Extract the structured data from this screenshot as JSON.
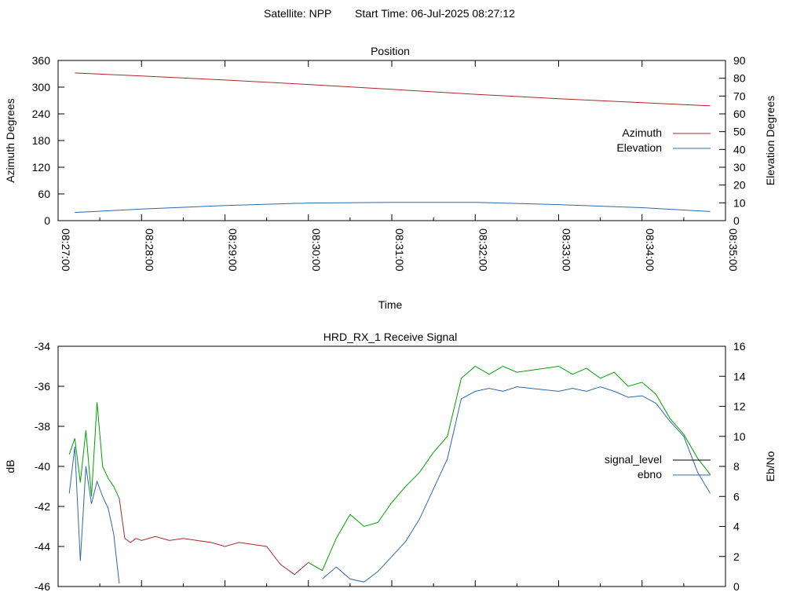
{
  "header": {
    "satellite": "Satellite: NPP",
    "start_time": "Start Time: 06-Jul-2025 08:27:12"
  },
  "colors": {
    "azimuth": "#a52a2a",
    "elevation": "#2f68a6",
    "signal_level_high": "#00a000",
    "signal_level_low": "#a52a2a",
    "ebno": "#2f68a6",
    "legend_signal": "#000000"
  },
  "chart_data": [
    {
      "type": "line",
      "title": "Position",
      "xlabel": "Time",
      "ylabel": "Azimuth Degrees",
      "y2label": "Elevation Degrees",
      "xlim": [
        "08:27:00",
        "08:35:00"
      ],
      "x_ticks": [
        "08:27:00",
        "08:28:00",
        "08:29:00",
        "08:30:00",
        "08:31:00",
        "08:32:00",
        "08:33:00",
        "08:34:00",
        "08:35:00"
      ],
      "ylim": [
        0,
        360
      ],
      "y_ticks": [
        "0",
        "60",
        "120",
        "180",
        "240",
        "300",
        "360"
      ],
      "y2lim": [
        0,
        90
      ],
      "y2_ticks": [
        "0",
        "10",
        "20",
        "30",
        "40",
        "50",
        "60",
        "70",
        "80",
        "90"
      ],
      "legend_position": "right",
      "grid": false,
      "series": [
        {
          "name": "Azimuth",
          "axis": "y1",
          "x": [
            "08:27:12",
            "08:28:00",
            "08:29:00",
            "08:30:00",
            "08:31:00",
            "08:32:00",
            "08:33:00",
            "08:34:00",
            "08:34:49"
          ],
          "values": [
            332,
            325,
            316,
            306,
            295,
            284,
            274,
            265,
            258
          ]
        },
        {
          "name": "Elevation",
          "axis": "y2",
          "x": [
            "08:27:12",
            "08:28:00",
            "08:29:00",
            "08:30:00",
            "08:31:00",
            "08:32:00",
            "08:33:00",
            "08:34:00",
            "08:34:49"
          ],
          "values": [
            4.6,
            6.5,
            8.5,
            9.9,
            10.3,
            10.3,
            9.0,
            7.3,
            5.1
          ]
        }
      ]
    },
    {
      "type": "line",
      "title": "HRD_RX_1 Receive Signal",
      "ylabel": "dB",
      "y2label": "Eb/No",
      "xlim": [
        "08:27:00",
        "08:35:00"
      ],
      "ylim": [
        -46,
        -34
      ],
      "y_ticks": [
        "-34",
        "-36",
        "-38",
        "-40",
        "-42",
        "-44",
        "-46"
      ],
      "y2lim": [
        0,
        16
      ],
      "y2_ticks": [
        "0",
        "2",
        "4",
        "6",
        "8",
        "10",
        "12",
        "14",
        "16"
      ],
      "legend_position": "right",
      "grid": false,
      "series": [
        {
          "name": "signal_level",
          "axis": "y1",
          "x": [
            "08:27:08",
            "08:27:12",
            "08:27:16",
            "08:27:20",
            "08:27:24",
            "08:27:28",
            "08:27:32",
            "08:27:36",
            "08:27:40",
            "08:27:44",
            "08:27:48",
            "08:27:52",
            "08:27:56",
            "08:28:00",
            "08:28:10",
            "08:28:20",
            "08:28:30",
            "08:28:40",
            "08:28:50",
            "08:29:00",
            "08:29:10",
            "08:29:20",
            "08:29:30",
            "08:29:40",
            "08:29:50",
            "08:30:00",
            "08:30:10",
            "08:30:20",
            "08:30:30",
            "08:30:40",
            "08:30:50",
            "08:31:00",
            "08:31:10",
            "08:31:20",
            "08:31:30",
            "08:31:40",
            "08:31:50",
            "08:32:00",
            "08:32:10",
            "08:32:20",
            "08:32:30",
            "08:32:40",
            "08:32:50",
            "08:33:00",
            "08:33:10",
            "08:33:20",
            "08:33:30",
            "08:33:40",
            "08:33:50",
            "08:34:00",
            "08:34:10",
            "08:34:20",
            "08:34:30",
            "08:34:40",
            "08:34:49"
          ],
          "values": [
            -39.4,
            -38.6,
            -40.8,
            -38.2,
            -41.5,
            -36.8,
            -40.0,
            -40.6,
            -41.0,
            -41.6,
            -43.6,
            -43.8,
            -43.6,
            -43.7,
            -43.5,
            -43.7,
            -43.6,
            -43.7,
            -43.8,
            -44.0,
            -43.8,
            -43.9,
            -44.0,
            -44.9,
            -45.4,
            -44.8,
            -45.2,
            -43.6,
            -42.4,
            -43.0,
            -42.8,
            -41.8,
            -41.0,
            -40.3,
            -39.3,
            -38.5,
            -35.6,
            -35.0,
            -35.4,
            -35.0,
            -35.3,
            -35.2,
            -35.1,
            -35.0,
            -35.4,
            -35.1,
            -35.6,
            -35.3,
            -36.0,
            -35.8,
            -36.4,
            -37.6,
            -38.4,
            -39.6,
            -40.4
          ]
        },
        {
          "name": "ebno",
          "axis": "y2",
          "x": [
            "08:27:08",
            "08:27:12",
            "08:27:16",
            "08:27:20",
            "08:27:24",
            "08:27:28",
            "08:27:32",
            "08:27:36",
            "08:27:40",
            "08:27:44",
            "08:27:48",
            "08:27:52",
            "08:27:56",
            "08:28:00",
            "08:28:10",
            "08:28:20",
            "08:28:30",
            "08:28:40",
            "08:28:50",
            "08:29:00",
            "08:29:10",
            "08:29:20",
            "08:29:30",
            "08:29:40",
            "08:29:50",
            "08:30:00",
            "08:30:10",
            "08:30:20",
            "08:30:30",
            "08:30:40",
            "08:30:50",
            "08:31:00",
            "08:31:10",
            "08:31:20",
            "08:31:30",
            "08:31:40",
            "08:31:50",
            "08:32:00",
            "08:32:10",
            "08:32:20",
            "08:32:30",
            "08:32:40",
            "08:32:50",
            "08:33:00",
            "08:33:10",
            "08:33:20",
            "08:33:30",
            "08:33:40",
            "08:33:50",
            "08:34:00",
            "08:34:10",
            "08:34:20",
            "08:34:30",
            "08:34:40",
            "08:34:49"
          ],
          "values": [
            6.2,
            9.3,
            1.7,
            8.0,
            5.5,
            7.0,
            6.0,
            5.2,
            3.5,
            0.2,
            null,
            null,
            null,
            null,
            null,
            null,
            null,
            null,
            null,
            null,
            null,
            null,
            null,
            null,
            null,
            null,
            0.5,
            1.3,
            0.5,
            0.3,
            1.0,
            2.0,
            3.0,
            4.5,
            6.5,
            8.5,
            12.5,
            13.0,
            13.2,
            13.0,
            13.3,
            13.2,
            13.1,
            13.0,
            13.2,
            13.0,
            13.3,
            13.0,
            12.6,
            12.7,
            12.2,
            11.0,
            10.0,
            7.6,
            6.2
          ]
        }
      ]
    }
  ]
}
